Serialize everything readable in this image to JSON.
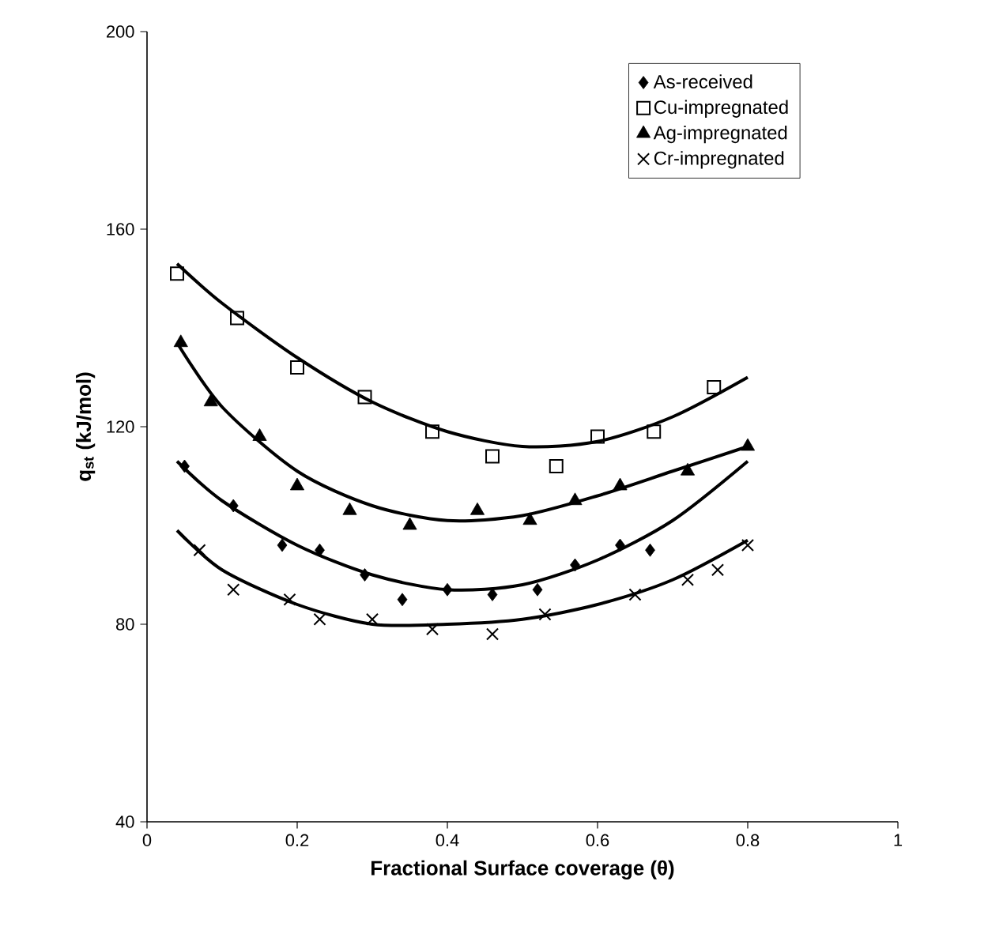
{
  "chart_data": {
    "type": "scatter",
    "xlabel": "Fractional Surface coverage (θ)",
    "ylabel": "q$_{st}$ (kJ/mol)",
    "xlim": [
      0,
      1
    ],
    "ylim": [
      40,
      200
    ],
    "xticks": [
      0,
      0.2,
      0.4,
      0.6,
      0.8,
      1
    ],
    "yticks": [
      40,
      80,
      120,
      160,
      200
    ],
    "legend": "top right",
    "series": [
      {
        "name": "As-received",
        "color": "#000000",
        "marker": "diamond",
        "x": [
          0.05,
          0.115,
          0.18,
          0.23,
          0.29,
          0.34,
          0.4,
          0.46,
          0.52,
          0.57,
          0.63,
          0.67
        ],
        "values": [
          112,
          104,
          96,
          95,
          90,
          85,
          87,
          86,
          87,
          92,
          96,
          95
        ]
      },
      {
        "name": "Cu-impregnated",
        "color": "#000000",
        "marker": "square",
        "x": [
          0.04,
          0.12,
          0.2,
          0.29,
          0.38,
          0.46,
          0.545,
          0.6,
          0.675,
          0.755
        ],
        "values": [
          151,
          142,
          132,
          126,
          119,
          114,
          112,
          118,
          119,
          128
        ]
      },
      {
        "name": "Ag-impregnated",
        "color": "#000000",
        "marker": "triangle",
        "x": [
          0.045,
          0.085,
          0.15,
          0.2,
          0.27,
          0.35,
          0.44,
          0.51,
          0.57,
          0.63,
          0.72,
          0.8
        ],
        "values": [
          137,
          125,
          118,
          108,
          103,
          100,
          103,
          101,
          105,
          108,
          111,
          116
        ]
      },
      {
        "name": "Cr-impregnated",
        "color": "#000000",
        "marker": "cross",
        "x": [
          0.07,
          0.115,
          0.19,
          0.23,
          0.3,
          0.38,
          0.46,
          0.53,
          0.65,
          0.72,
          0.76,
          0.8
        ],
        "values": [
          95,
          87,
          85,
          81,
          81,
          79,
          78,
          82,
          86,
          89,
          91,
          96
        ]
      },
      {
        "type": "line",
        "color": "#000000",
        "x": [
          0.04,
          0.1,
          0.2,
          0.3,
          0.4,
          0.5,
          0.6,
          0.7,
          0.8
        ],
        "values": [
          113,
          105,
          96,
          90,
          87,
          88,
          93,
          101,
          113
        ]
      },
      {
        "type": "line",
        "color": "#000000",
        "x": [
          0.04,
          0.1,
          0.2,
          0.3,
          0.4,
          0.5,
          0.6,
          0.7,
          0.8
        ],
        "values": [
          153,
          145,
          134,
          125,
          119,
          116,
          117,
          122,
          130
        ]
      },
      {
        "type": "line",
        "color": "#000000",
        "x": [
          0.04,
          0.1,
          0.2,
          0.3,
          0.4,
          0.5,
          0.6,
          0.7,
          0.8
        ],
        "values": [
          137,
          124,
          111,
          104,
          101,
          102,
          106,
          111,
          116
        ]
      },
      {
        "type": "line",
        "color": "#000000",
        "x": [
          0.04,
          0.1,
          0.2,
          0.3,
          0.4,
          0.5,
          0.6,
          0.7,
          0.8
        ],
        "values": [
          99,
          91,
          84,
          80,
          80,
          81,
          84,
          89,
          97
        ]
      }
    ]
  }
}
